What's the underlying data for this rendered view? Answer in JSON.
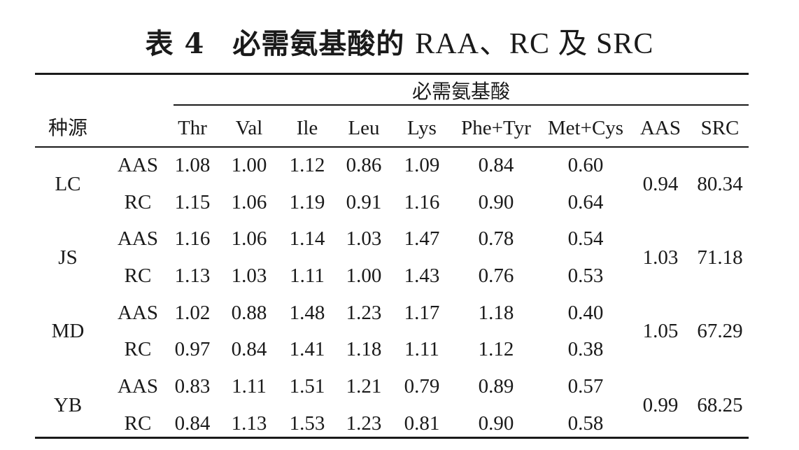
{
  "table": {
    "title_prefix": "表 4",
    "title_cn": "必需氨基酸的",
    "title_en": "RAA、RC 及 SRC",
    "group_header": "必需氨基酸",
    "stub_header": "种源",
    "columns": [
      "Thr",
      "Val",
      "Ile",
      "Leu",
      "Lys",
      "Phe+Tyr",
      "Met+Cys",
      "AAS",
      "SRC"
    ],
    "rows": [
      {
        "source": "LC",
        "aas_label": "AAS",
        "aas_values": [
          "1.08",
          "1.00",
          "1.12",
          "0.86",
          "1.09",
          "0.84",
          "0.60"
        ],
        "rc_label": "RC",
        "rc_values": [
          "1.15",
          "1.06",
          "1.19",
          "0.91",
          "1.16",
          "0.90",
          "0.64"
        ],
        "aas_total": "0.94",
        "src": "80.34"
      },
      {
        "source": "JS",
        "aas_label": "AAS",
        "aas_values": [
          "1.16",
          "1.06",
          "1.14",
          "1.03",
          "1.47",
          "0.78",
          "0.54"
        ],
        "rc_label": "RC",
        "rc_values": [
          "1.13",
          "1.03",
          "1.11",
          "1.00",
          "1.43",
          "0.76",
          "0.53"
        ],
        "aas_total": "1.03",
        "src": "71.18"
      },
      {
        "source": "MD",
        "aas_label": "AAS",
        "aas_values": [
          "1.02",
          "0.88",
          "1.48",
          "1.23",
          "1.17",
          "1.18",
          "0.40"
        ],
        "rc_label": "RC",
        "rc_values": [
          "0.97",
          "0.84",
          "1.41",
          "1.18",
          "1.11",
          "1.12",
          "0.38"
        ],
        "aas_total": "1.05",
        "src": "67.29"
      },
      {
        "source": "YB",
        "aas_label": "AAS",
        "aas_values": [
          "0.83",
          "1.11",
          "1.51",
          "1.21",
          "0.79",
          "0.89",
          "0.57"
        ],
        "rc_label": "RC",
        "rc_values": [
          "0.84",
          "1.13",
          "1.53",
          "1.23",
          "0.81",
          "0.90",
          "0.58"
        ],
        "aas_total": "0.99",
        "src": "68.25"
      }
    ]
  }
}
